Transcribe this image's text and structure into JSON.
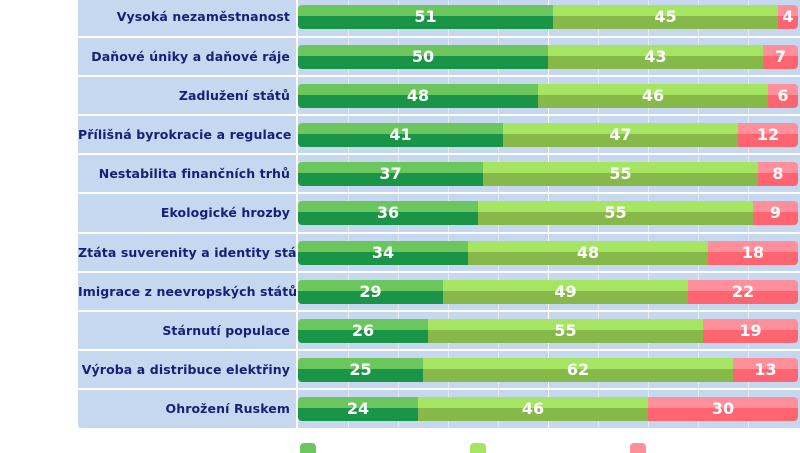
{
  "chart_data": {
    "type": "bar",
    "stacked": true,
    "orientation": "horizontal",
    "xlim": [
      0,
      100
    ],
    "grid": true,
    "categories": [
      "Vysoká nezaměstnanost",
      "Daňové úniky a daňové ráje",
      "Zadlužení států",
      "Přílišná byrokracie a regulace",
      "Nestabilita finančních trhů",
      "Ekologické hrozby",
      "Ztáta suverenity a identity států",
      "Imigrace z neevropských států",
      "Stárnutí populace",
      "Výroba a distribuce elektřiny",
      "Ohrožení Ruskem"
    ],
    "series": [
      {
        "values": [
          51,
          50,
          48,
          41,
          37,
          36,
          34,
          29,
          26,
          25,
          24
        ],
        "color_top": "#6cc65e",
        "color": "#1a9447"
      },
      {
        "values": [
          45,
          43,
          46,
          47,
          55,
          55,
          48,
          49,
          55,
          62,
          46
        ],
        "color_top": "#a5e562",
        "color": "#87b84a"
      },
      {
        "values": [
          4,
          7,
          6,
          12,
          8,
          9,
          18,
          22,
          19,
          13,
          30
        ],
        "color_top": "#ff8f9b",
        "color": "#ff6471"
      }
    ]
  }
}
